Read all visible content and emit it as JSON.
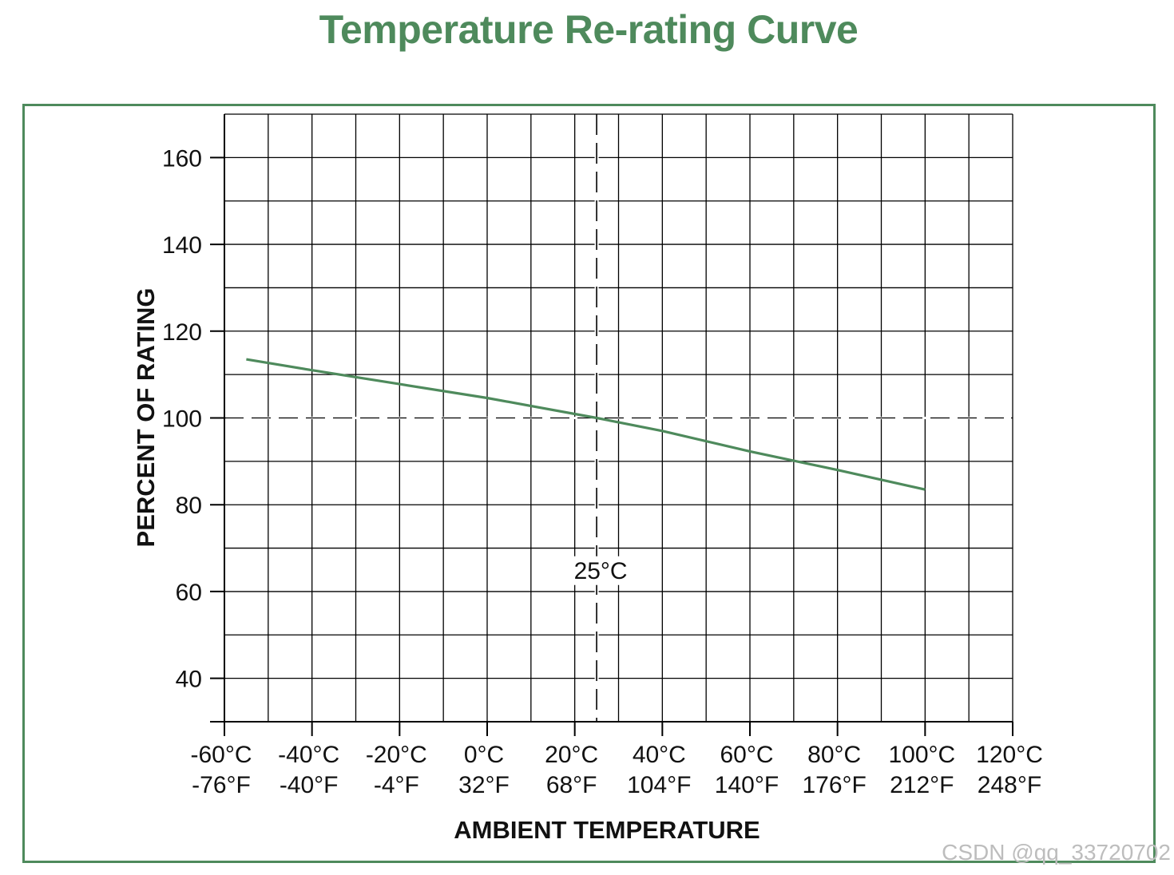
{
  "colors": {
    "accent": "#4e8a5c",
    "grid": "#000000",
    "text": "#111111"
  },
  "watermark": "CSDN @qq_33720702",
  "chart_data": {
    "type": "line",
    "title": "Temperature Re-rating Curve",
    "xlabel": "AMBIENT TEMPERATURE",
    "ylabel": "PERCENT OF RATING",
    "xlim": [
      -60,
      120
    ],
    "ylim": [
      30,
      170
    ],
    "x_ticks": [
      {
        "value": -60,
        "c": "-60°C",
        "f": "-76°F"
      },
      {
        "value": -40,
        "c": "-40°C",
        "f": "-40°F"
      },
      {
        "value": -20,
        "c": "-20°C",
        "f": "-4°F"
      },
      {
        "value": 0,
        "c": "0°C",
        "f": "32°F"
      },
      {
        "value": 20,
        "c": "20°C",
        "f": "68°F"
      },
      {
        "value": 40,
        "c": "40°C",
        "f": "104°F"
      },
      {
        "value": 60,
        "c": "60°C",
        "f": "140°F"
      },
      {
        "value": 80,
        "c": "80°C",
        "f": "176°F"
      },
      {
        "value": 100,
        "c": "100°C",
        "f": "212°F"
      },
      {
        "value": 120,
        "c": "120°C",
        "f": "248°F"
      }
    ],
    "y_ticks": [
      40,
      60,
      80,
      100,
      120,
      140,
      160
    ],
    "x_grid_step": 10,
    "y_grid_step": 10,
    "reference_lines": {
      "vertical": {
        "x": 25,
        "label": "25°C",
        "label_y": 65
      },
      "horizontal": {
        "y": 100
      }
    },
    "series": [
      {
        "name": "Re-rating",
        "x": [
          -55,
          -40,
          -20,
          0,
          25,
          40,
          60,
          80,
          100
        ],
        "y": [
          113.5,
          111,
          107.8,
          104.6,
          100,
          97,
          92.3,
          88,
          83.5
        ]
      }
    ]
  }
}
